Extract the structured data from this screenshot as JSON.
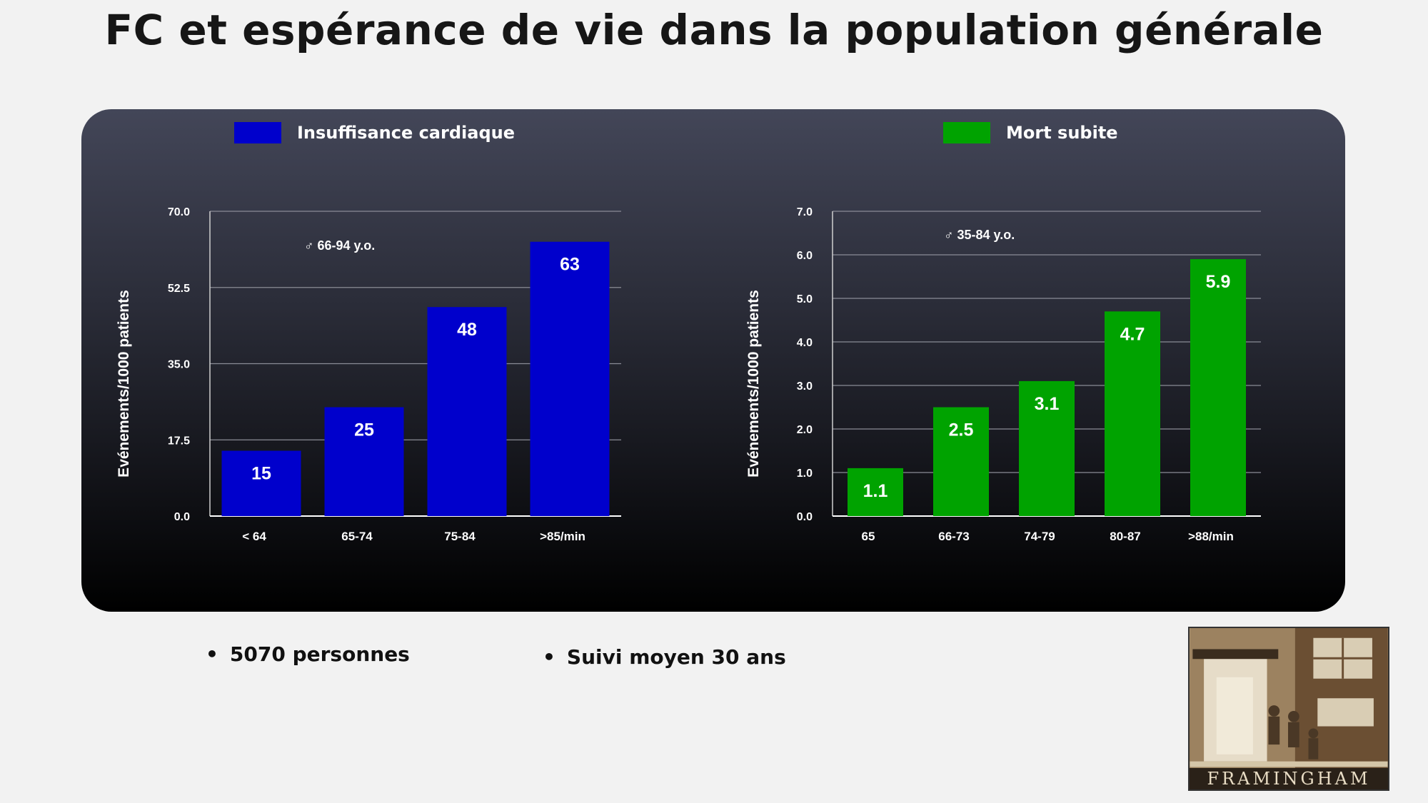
{
  "title": "FC et espérance de vie dans la population générale",
  "chart_data": [
    {
      "type": "bar",
      "legend": "Insuffisance cardiaque",
      "color": "#0000cc",
      "ylabel": "Evénements/1000 patients",
      "annotation": "♂ 66-94 y.o.",
      "categories": [
        "< 64",
        "65-74",
        "75-84",
        ">85/min"
      ],
      "values": [
        15,
        25,
        48,
        63
      ],
      "value_labels": [
        "15",
        "25",
        "48",
        "63"
      ],
      "yticks": [
        "0.0",
        "17.5",
        "35.0",
        "52.5",
        "70.0"
      ],
      "ylim": [
        0,
        70
      ]
    },
    {
      "type": "bar",
      "legend": "Mort subite",
      "color": "#00a300",
      "ylabel": "Evénements/1000 patients",
      "annotation": "♂ 35-84 y.o.",
      "categories": [
        "65",
        "66-73",
        "74-79",
        "80-87",
        ">88/min"
      ],
      "values": [
        1.1,
        2.5,
        3.1,
        4.7,
        5.9
      ],
      "value_labels": [
        "1.1",
        "2.5",
        "3.1",
        "4.7",
        "5.9"
      ],
      "yticks": [
        "0.0",
        "1.0",
        "2.0",
        "3.0",
        "4.0",
        "5.0",
        "6.0",
        "7.0"
      ],
      "ylim": [
        0,
        7
      ]
    }
  ],
  "bullets": [
    "5070 personnes",
    "Suivi moyen 30 ans"
  ],
  "logo_caption": "FRAMINGHAM"
}
